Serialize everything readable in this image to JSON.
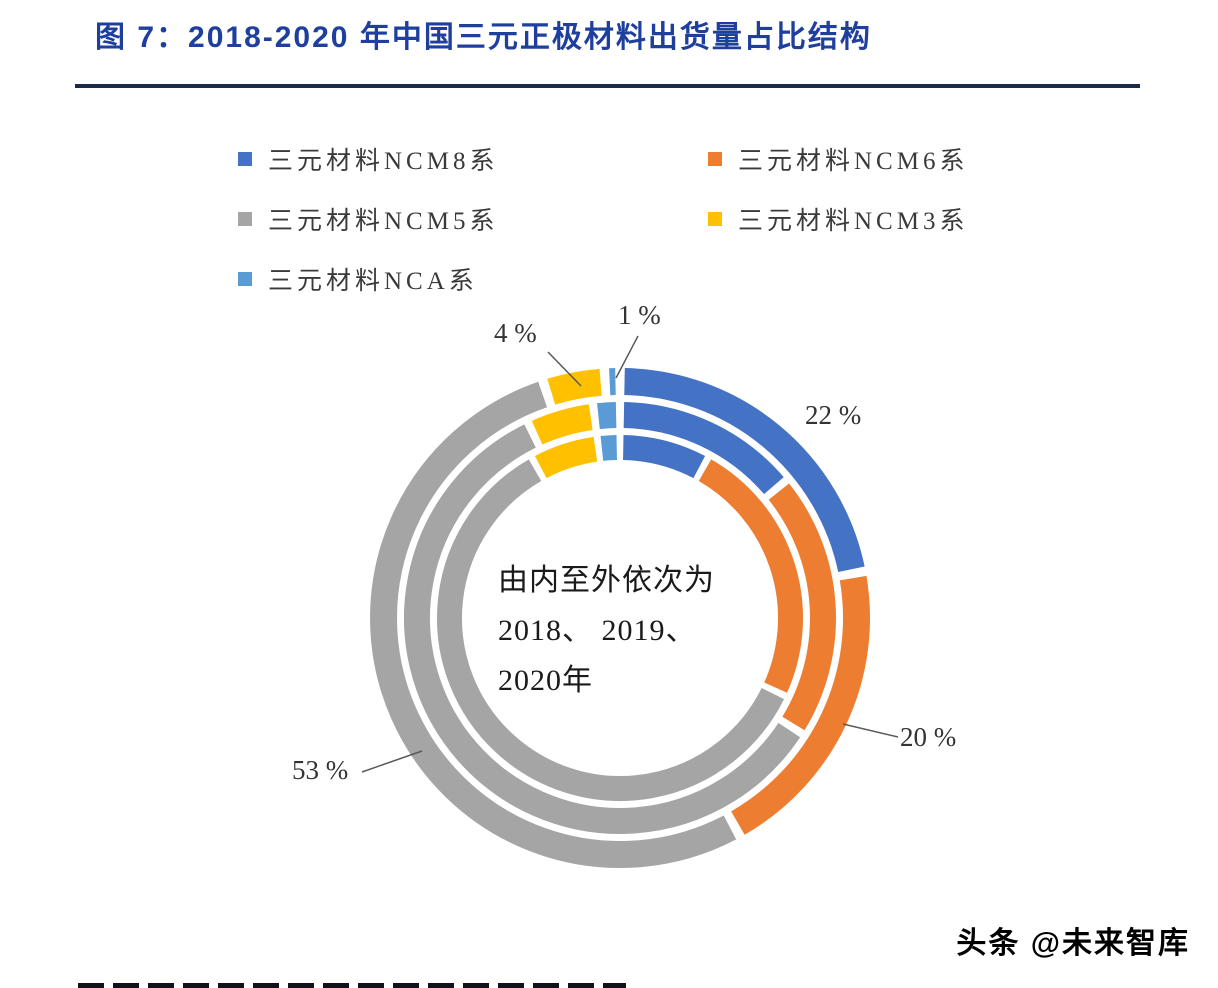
{
  "figure": {
    "title": "图 7：2018-2020 年中国三元正极材料出货量占比结构"
  },
  "legend": [
    {
      "name": "ncm8",
      "label": "三元材料NCM8系",
      "color": "#4472C4"
    },
    {
      "name": "ncm6",
      "label": "三元材料NCM6系",
      "color": "#ED7D31"
    },
    {
      "name": "ncm5",
      "label": "三元材料NCM5系",
      "color": "#A5A5A5"
    },
    {
      "name": "ncm3",
      "label": "三元材料NCM3系",
      "color": "#FFC000"
    },
    {
      "name": "nca",
      "label": "三元材料NCA系",
      "color": "#5B9BD5"
    }
  ],
  "center_note": {
    "line1": "由内至外依次为",
    "line2": "2018、 2019、",
    "line3": "2020年"
  },
  "data_labels": {
    "ncm3": "4 %",
    "nca": "1 %",
    "ncm8": "22 %",
    "ncm6": "20 %",
    "ncm5": "53 %"
  },
  "watermark": "头条 @未来智库",
  "chart_data": {
    "type": "pie",
    "variant": "concentric-donut-3-rings",
    "title": "2018-2020 年中国三元正极材料出货量占比结构",
    "ring_order_note": "由内至外依次为 2018、2019、2020年",
    "legend_position": "top",
    "categories": [
      "三元材料NCM8系",
      "三元材料NCM6系",
      "三元材料NCM5系",
      "三元材料NCM3系",
      "三元材料NCA系"
    ],
    "colors": [
      "#4472C4",
      "#ED7D31",
      "#A5A5A5",
      "#FFC000",
      "#5B9BD5"
    ],
    "series": [
      {
        "name": "2018",
        "ring": "inner",
        "values": [
          8,
          24,
          60,
          6,
          2
        ]
      },
      {
        "name": "2019",
        "ring": "middle",
        "values": [
          14,
          20,
          59,
          5,
          2
        ]
      },
      {
        "name": "2020",
        "ring": "outer",
        "values": [
          22,
          20,
          53,
          4,
          1
        ]
      }
    ],
    "labeled_segments": [
      {
        "series": "2020",
        "category": "三元材料NCM8系",
        "label": "22 %"
      },
      {
        "series": "2020",
        "category": "三元材料NCM6系",
        "label": "20 %"
      },
      {
        "series": "2020",
        "category": "三元材料NCM5系",
        "label": "53 %"
      },
      {
        "series": "2020",
        "category": "三元材料NCM3系",
        "label": "4 %"
      },
      {
        "series": "2020",
        "category": "三元材料NCA系",
        "label": "1 %"
      }
    ],
    "note": "Only the outer 2020 ring carries data labels in the image; 2018/2019 ring values are estimated from arc lengths."
  }
}
